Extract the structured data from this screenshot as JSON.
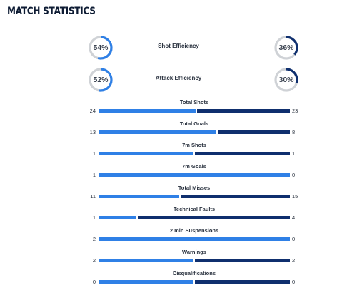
{
  "header": {
    "title": "MATCH STATISTICS"
  },
  "colors": {
    "home": "#2f80e6",
    "away": "#0f2f6e",
    "track": "#cfd2d6"
  },
  "efficiency": [
    {
      "label": "Shot Efficiency",
      "home_pct": 54,
      "away_pct": 36,
      "home_text": "54%",
      "away_text": "36%"
    },
    {
      "label": "Attack Efficiency",
      "home_pct": 52,
      "away_pct": 30,
      "home_text": "52%",
      "away_text": "30%"
    }
  ],
  "stats": [
    {
      "label": "Total Shots",
      "home": 24,
      "away": 23
    },
    {
      "label": "Total Goals",
      "home": 13,
      "away": 8
    },
    {
      "label": "7m Shots",
      "home": 1,
      "away": 1
    },
    {
      "label": "7m Goals",
      "home": 1,
      "away": 0
    },
    {
      "label": "Total Misses",
      "home": 11,
      "away": 15
    },
    {
      "label": "Technical Faults",
      "home": 1,
      "away": 4
    },
    {
      "label": "2 min Suspensions",
      "home": 2,
      "away": 0
    },
    {
      "label": "Warnings",
      "home": 2,
      "away": 2
    },
    {
      "label": "Disqualifications",
      "home": 0,
      "away": 0
    }
  ]
}
